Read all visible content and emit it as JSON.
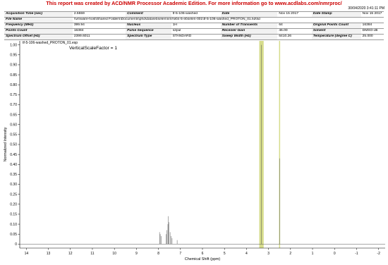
{
  "banner": "This report was created by ACD/NMR Processor Academic Edition. For more information go to www.acdlabs.com/nmrproc/",
  "timestamp": "30/04/2020 3:41:11 PM",
  "params": [
    [
      {
        "k": "Acquisition Time (sec)",
        "v": "2.5559"
      },
      {
        "k": "Comment",
        "v": "tf-5-106-washed"
      },
      {
        "k": "Date",
        "v": "Nov 15 2017"
      },
      {
        "k": "Date Stamp",
        "v": "Nov 15 2017"
      }
    ],
    [
      {
        "k": "File Name",
        "v": "\\\\vmware-host\\Shared Folders\\Documents\\phd\\data\\ebselen\\nmr\\ebs-5-ebselen-001\\tf-5-106-washed_PROTON_01.fid\\fid"
      }
    ],
    [
      {
        "k": "Frequency (MHz)",
        "v": "399.94"
      },
      {
        "k": "Nucleus",
        "v": "1H"
      },
      {
        "k": "Number of Transients",
        "v": "64"
      },
      {
        "k": "Original Points Count",
        "v": "16384"
      }
    ],
    [
      {
        "k": "Points Count",
        "v": "16384"
      },
      {
        "k": "Pulse Sequence",
        "v": "s2pul"
      },
      {
        "k": "Receiver Gain",
        "v": "46.00"
      },
      {
        "k": "Solvent",
        "v": "DMSO-d6"
      }
    ],
    [
      {
        "k": "Spectrum Offset (Hz)",
        "v": "2399.6011"
      },
      {
        "k": "Spectrum Type",
        "v": "STANDARD"
      },
      {
        "k": "Sweep Width (Hz)",
        "v": "6410.26"
      },
      {
        "k": "Temperature (degree C)",
        "v": "25.000"
      }
    ]
  ],
  "chart_data": {
    "type": "line",
    "series_label": "tf-5-106-washed_PROTON_01.esp",
    "annotation": "VerticalScaleFactor = 1",
    "xlabel": "Chemical Shift (ppm)",
    "ylabel": "Normalized Intensity",
    "xlim": [
      14.3,
      -2.3
    ],
    "ylim": [
      -0.02,
      1.02
    ],
    "x_ticks": [
      "14",
      "13",
      "12",
      "11",
      "10",
      "9",
      "8",
      "7",
      "6",
      "5",
      "4",
      "3",
      "2",
      "1",
      "0",
      "-1",
      "-2"
    ],
    "y_ticks": [
      "0",
      "0.05",
      "0.10",
      "0.15",
      "0.20",
      "0.25",
      "0.30",
      "0.35",
      "0.40",
      "0.45",
      "0.50",
      "0.55",
      "0.60",
      "0.65",
      "0.70",
      "0.75",
      "0.80",
      "0.85",
      "0.90",
      "0.95",
      "1.00"
    ],
    "highlight_regions": [
      [
        3.42,
        3.22
      ],
      [
        2.52,
        2.48
      ]
    ],
    "highlight_color": "#d6dc8c",
    "line_color": "#555555",
    "peaks": [
      {
        "x": 7.95,
        "y": 0.06
      },
      {
        "x": 7.92,
        "y": 0.05
      },
      {
        "x": 7.88,
        "y": 0.04
      },
      {
        "x": 7.65,
        "y": 0.05
      },
      {
        "x": 7.62,
        "y": 0.07
      },
      {
        "x": 7.57,
        "y": 0.1
      },
      {
        "x": 7.55,
        "y": 0.14
      },
      {
        "x": 7.52,
        "y": 0.11
      },
      {
        "x": 7.47,
        "y": 0.06
      },
      {
        "x": 7.43,
        "y": 0.04
      },
      {
        "x": 7.38,
        "y": 0.03
      },
      {
        "x": 7.15,
        "y": 0.02
      },
      {
        "x": 3.33,
        "y": 1.0
      },
      {
        "x": 2.5,
        "y": 0.43
      }
    ]
  }
}
